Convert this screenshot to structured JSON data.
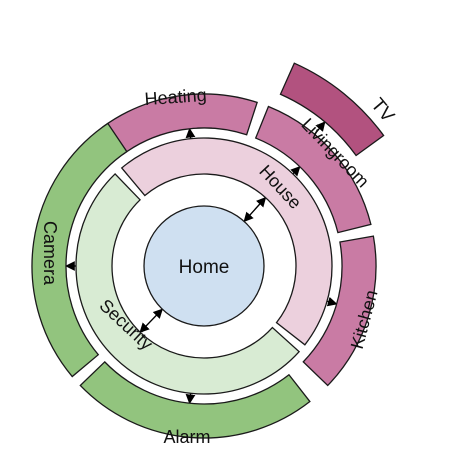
{
  "center": {
    "label": "Home",
    "fill": "#cfe0f1"
  },
  "rings": [
    {
      "id": "house",
      "label": "House",
      "fill": "#ecd0dd"
    },
    {
      "id": "security",
      "label": "Security",
      "fill": "#d8ebd3"
    }
  ],
  "outer": [
    {
      "id": "heating",
      "label": "Heating",
      "fill": "#c97ba4"
    },
    {
      "id": "livingroom",
      "label": "Livingroom",
      "fill": "#c97ba4"
    },
    {
      "id": "kitchen",
      "label": "Kitchen",
      "fill": "#c97ba4"
    },
    {
      "id": "tv",
      "label": "TV",
      "fill": "#b2527f"
    },
    {
      "id": "camera",
      "label": "Camera",
      "fill": "#92c47e"
    },
    {
      "id": "alarm",
      "label": "Alarm",
      "fill": "#92c47e"
    }
  ],
  "colors": {
    "stroke": "#1a1a1a",
    "arrow": "#000000"
  }
}
